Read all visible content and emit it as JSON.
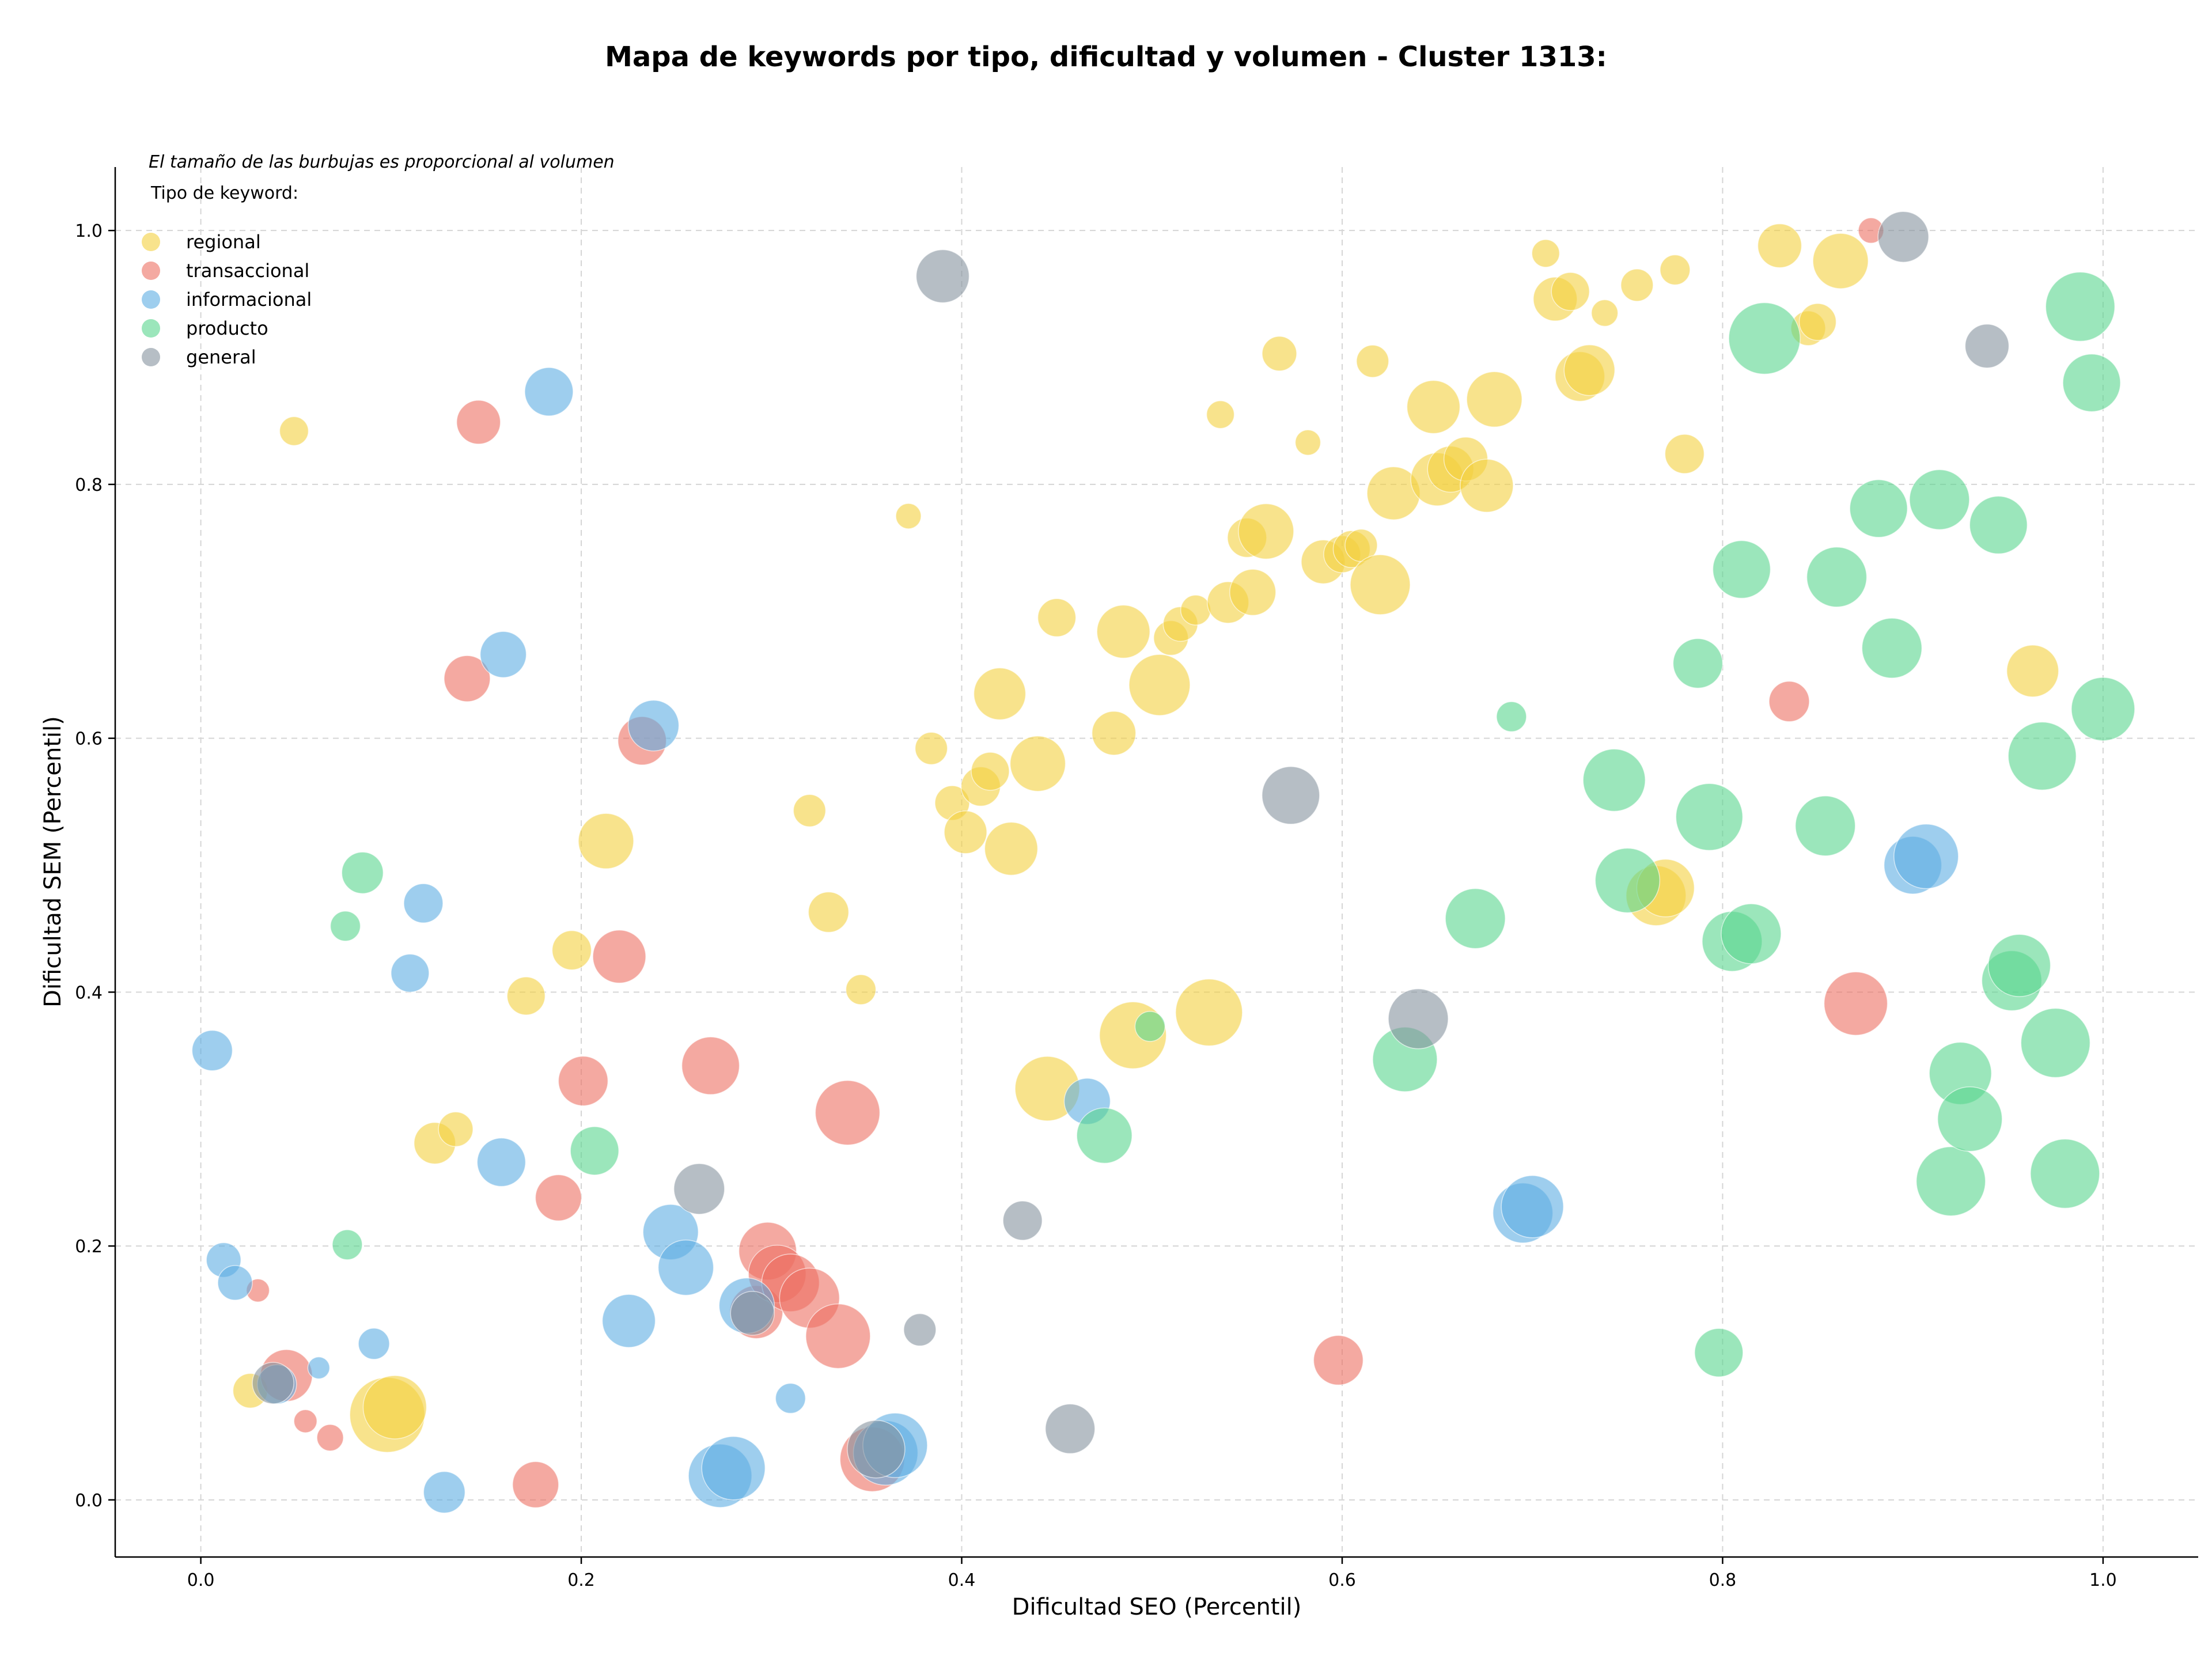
{
  "chart_data": {
    "type": "scatter",
    "title": "Mapa de keywords por tipo, dificultad y volumen - Cluster 1313:",
    "xlabel": "Dificultad SEO (Percentil)",
    "ylabel": "Dificultad SEM (Percentil)",
    "xlim": [
      -0.045,
      1.05
    ],
    "ylim": [
      -0.045,
      1.05
    ],
    "xticks": [
      "0.0",
      "0.2",
      "0.4",
      "0.6",
      "0.8",
      "1.0"
    ],
    "yticks": [
      "0.0",
      "0.2",
      "0.4",
      "0.6",
      "0.8",
      "1.0"
    ],
    "grid": true,
    "legend_position": "top-left",
    "annotation": "El tamaño de las burbujas es proporcional al volumen",
    "legend_title": "Tipo de keyword:",
    "size_unit": "relative volume",
    "series": [
      {
        "name": "regional",
        "color": "#f4d03f",
        "points": [
          [
            0.049,
            0.842,
            25
          ],
          [
            0.026,
            0.086,
            30
          ],
          [
            0.098,
            0.067,
            65
          ],
          [
            0.102,
            0.073,
            55
          ],
          [
            0.123,
            0.281,
            36
          ],
          [
            0.134,
            0.292,
            30
          ],
          [
            0.171,
            0.397,
            33
          ],
          [
            0.195,
            0.433,
            34
          ],
          [
            0.213,
            0.519,
            48
          ],
          [
            0.32,
            0.543,
            28
          ],
          [
            0.33,
            0.463,
            35
          ],
          [
            0.347,
            0.402,
            26
          ],
          [
            0.372,
            0.775,
            22
          ],
          [
            0.384,
            0.592,
            28
          ],
          [
            0.395,
            0.549,
            30
          ],
          [
            0.402,
            0.526,
            37
          ],
          [
            0.41,
            0.562,
            34
          ],
          [
            0.415,
            0.574,
            33
          ],
          [
            0.42,
            0.635,
            45
          ],
          [
            0.426,
            0.513,
            46
          ],
          [
            0.44,
            0.58,
            48
          ],
          [
            0.45,
            0.695,
            33
          ],
          [
            0.445,
            0.324,
            56
          ],
          [
            0.48,
            0.604,
            38
          ],
          [
            0.485,
            0.684,
            46
          ],
          [
            0.49,
            0.366,
            58
          ],
          [
            0.504,
            0.642,
            53
          ],
          [
            0.51,
            0.679,
            30
          ],
          [
            0.515,
            0.69,
            30
          ],
          [
            0.523,
            0.701,
            26
          ],
          [
            0.53,
            0.384,
            58
          ],
          [
            0.536,
            0.855,
            24
          ],
          [
            0.54,
            0.707,
            36
          ],
          [
            0.55,
            0.758,
            34
          ],
          [
            0.553,
            0.715,
            40
          ],
          [
            0.56,
            0.763,
            48
          ],
          [
            0.567,
            0.903,
            30
          ],
          [
            0.582,
            0.833,
            22
          ],
          [
            0.59,
            0.739,
            38
          ],
          [
            0.6,
            0.745,
            32
          ],
          [
            0.605,
            0.749,
            32
          ],
          [
            0.61,
            0.752,
            28
          ],
          [
            0.616,
            0.897,
            28
          ],
          [
            0.62,
            0.721,
            52
          ],
          [
            0.627,
            0.793,
            46
          ],
          [
            0.648,
            0.861,
            46
          ],
          [
            0.65,
            0.804,
            46
          ],
          [
            0.657,
            0.812,
            40
          ],
          [
            0.665,
            0.82,
            38
          ],
          [
            0.676,
            0.799,
            46
          ],
          [
            0.68,
            0.867,
            48
          ],
          [
            0.707,
            0.982,
            24
          ],
          [
            0.712,
            0.946,
            38
          ],
          [
            0.72,
            0.952,
            33
          ],
          [
            0.725,
            0.885,
            43
          ],
          [
            0.73,
            0.89,
            44
          ],
          [
            0.738,
            0.935,
            23
          ],
          [
            0.755,
            0.957,
            28
          ],
          [
            0.765,
            0.476,
            52
          ],
          [
            0.77,
            0.482,
            50
          ],
          [
            0.775,
            0.969,
            26
          ],
          [
            0.78,
            0.824,
            34
          ],
          [
            0.83,
            0.988,
            38
          ],
          [
            0.845,
            0.923,
            30
          ],
          [
            0.85,
            0.928,
            32
          ],
          [
            0.862,
            0.976,
            48
          ],
          [
            0.963,
            0.653,
            45
          ]
        ]
      },
      {
        "name": "transaccional",
        "color": "#ec7063",
        "points": [
          [
            0.03,
            0.165,
            20
          ],
          [
            0.045,
            0.098,
            45
          ],
          [
            0.055,
            0.062,
            20
          ],
          [
            0.068,
            0.049,
            23
          ],
          [
            0.14,
            0.647,
            40
          ],
          [
            0.146,
            0.849,
            38
          ],
          [
            0.176,
            0.012,
            40
          ],
          [
            0.188,
            0.238,
            40
          ],
          [
            0.201,
            0.33,
            43
          ],
          [
            0.22,
            0.428,
            46
          ],
          [
            0.232,
            0.598,
            42
          ],
          [
            0.268,
            0.342,
            50
          ],
          [
            0.292,
            0.148,
            46
          ],
          [
            0.298,
            0.196,
            50
          ],
          [
            0.303,
            0.178,
            50
          ],
          [
            0.31,
            0.171,
            50
          ],
          [
            0.32,
            0.159,
            52
          ],
          [
            0.335,
            0.129,
            56
          ],
          [
            0.34,
            0.305,
            56
          ],
          [
            0.353,
            0.032,
            56
          ],
          [
            0.598,
            0.11,
            43
          ],
          [
            0.835,
            0.629,
            35
          ],
          [
            0.87,
            0.391,
            55
          ],
          [
            0.878,
            1.0,
            22
          ]
        ]
      },
      {
        "name": "informacional",
        "color": "#5dade2",
        "points": [
          [
            0.006,
            0.354,
            35
          ],
          [
            0.012,
            0.189,
            30
          ],
          [
            0.018,
            0.171,
            30
          ],
          [
            0.04,
            0.091,
            34
          ],
          [
            0.062,
            0.104,
            19
          ],
          [
            0.091,
            0.123,
            27
          ],
          [
            0.11,
            0.415,
            33
          ],
          [
            0.117,
            0.47,
            34
          ],
          [
            0.128,
            0.006,
            36
          ],
          [
            0.158,
            0.266,
            42
          ],
          [
            0.159,
            0.666,
            40
          ],
          [
            0.183,
            0.873,
            42
          ],
          [
            0.225,
            0.141,
            46
          ],
          [
            0.238,
            0.61,
            44
          ],
          [
            0.247,
            0.211,
            48
          ],
          [
            0.255,
            0.183,
            48
          ],
          [
            0.273,
            0.019,
            55
          ],
          [
            0.28,
            0.025,
            55
          ],
          [
            0.287,
            0.153,
            48
          ],
          [
            0.31,
            0.08,
            26
          ],
          [
            0.36,
            0.037,
            56
          ],
          [
            0.365,
            0.043,
            56
          ],
          [
            0.466,
            0.314,
            40
          ],
          [
            0.695,
            0.226,
            52
          ],
          [
            0.7,
            0.231,
            54
          ],
          [
            0.9,
            0.5,
            50
          ],
          [
            0.907,
            0.507,
            56
          ]
        ]
      },
      {
        "name": "producto",
        "color": "#58d68d",
        "points": [
          [
            0.076,
            0.452,
            26
          ],
          [
            0.077,
            0.201,
            26
          ],
          [
            0.085,
            0.494,
            36
          ],
          [
            0.207,
            0.275,
            42
          ],
          [
            0.475,
            0.287,
            48
          ],
          [
            0.499,
            0.373,
            26
          ],
          [
            0.633,
            0.347,
            56
          ],
          [
            0.67,
            0.458,
            52
          ],
          [
            0.689,
            0.617,
            26
          ],
          [
            0.743,
            0.567,
            54
          ],
          [
            0.75,
            0.488,
            56
          ],
          [
            0.787,
            0.659,
            43
          ],
          [
            0.793,
            0.538,
            58
          ],
          [
            0.798,
            0.116,
            42
          ],
          [
            0.805,
            0.44,
            52
          ],
          [
            0.81,
            0.733,
            50
          ],
          [
            0.815,
            0.446,
            52
          ],
          [
            0.822,
            0.915,
            62
          ],
          [
            0.854,
            0.531,
            52
          ],
          [
            0.86,
            0.727,
            52
          ],
          [
            0.882,
            0.781,
            50
          ],
          [
            0.889,
            0.671,
            52
          ],
          [
            0.914,
            0.788,
            52
          ],
          [
            0.92,
            0.251,
            60
          ],
          [
            0.925,
            0.336,
            54
          ],
          [
            0.93,
            0.3,
            56
          ],
          [
            0.945,
            0.768,
            50
          ],
          [
            0.952,
            0.409,
            52
          ],
          [
            0.956,
            0.421,
            54
          ],
          [
            0.968,
            0.586,
            59
          ],
          [
            0.975,
            0.36,
            60
          ],
          [
            0.98,
            0.257,
            60
          ],
          [
            0.988,
            0.94,
            60
          ],
          [
            0.994,
            0.88,
            50
          ],
          [
            1.0,
            0.623,
            55
          ]
        ]
      },
      {
        "name": "general",
        "color": "#85929e",
        "points": [
          [
            0.038,
            0.092,
            36
          ],
          [
            0.262,
            0.245,
            44
          ],
          [
            0.29,
            0.147,
            38
          ],
          [
            0.355,
            0.04,
            50
          ],
          [
            0.378,
            0.134,
            28
          ],
          [
            0.39,
            0.964,
            46
          ],
          [
            0.432,
            0.22,
            34
          ],
          [
            0.457,
            0.056,
            43
          ],
          [
            0.573,
            0.555,
            50
          ],
          [
            0.64,
            0.379,
            52
          ],
          [
            0.895,
            0.995,
            44
          ],
          [
            0.939,
            0.909,
            38
          ]
        ]
      }
    ]
  }
}
